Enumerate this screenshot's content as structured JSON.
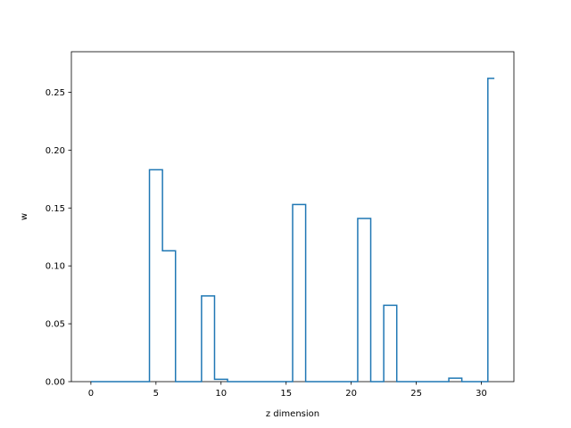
{
  "chart_data": {
    "type": "line",
    "style": "step-histogram",
    "title": "",
    "xlabel": "z dimension",
    "ylabel": "w",
    "xlim": [
      -1.5,
      32.5
    ],
    "ylim": [
      0,
      0.285
    ],
    "grid": false,
    "legend": "none",
    "line_color": "#1f77b4",
    "x_ticks": [
      0,
      5,
      10,
      15,
      20,
      25,
      30
    ],
    "x_tick_labels": [
      "0",
      "5",
      "10",
      "15",
      "20",
      "25",
      "30"
    ],
    "y_ticks": [
      0,
      0.05,
      0.1,
      0.15,
      0.2,
      0.25
    ],
    "y_tick_labels": [
      "0.00",
      "0.05",
      "0.10",
      "0.15",
      "0.20",
      "0.25"
    ],
    "x": [
      0,
      1,
      2,
      3,
      4,
      5,
      6,
      7,
      8,
      9,
      10,
      11,
      12,
      13,
      14,
      15,
      16,
      17,
      18,
      19,
      20,
      21,
      22,
      23,
      24,
      25,
      26,
      27,
      28,
      29,
      30,
      31
    ],
    "values": [
      0,
      0,
      0,
      0,
      0,
      0.183,
      0.113,
      0,
      0,
      0.074,
      0.002,
      0,
      0,
      0,
      0,
      0,
      0.153,
      0,
      0,
      0,
      0,
      0.141,
      0,
      0.066,
      0,
      0,
      0,
      0,
      0.003,
      0,
      0,
      0.262
    ]
  }
}
